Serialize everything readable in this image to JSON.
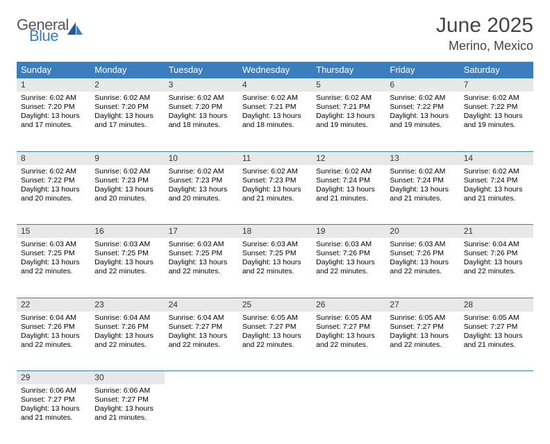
{
  "logo": {
    "general": "General",
    "blue": "Blue"
  },
  "title": "June 2025",
  "location": "Merino, Mexico",
  "colors": {
    "header_bg": "#3a7ebf",
    "daynum_bg": "#e8e8e8",
    "border": "#3a7ebf"
  },
  "weekdays": [
    "Sunday",
    "Monday",
    "Tuesday",
    "Wednesday",
    "Thursday",
    "Friday",
    "Saturday"
  ],
  "weeks": [
    [
      {
        "n": "1",
        "sr": "6:02 AM",
        "ss": "7:20 PM",
        "dl": "13 hours and 17 minutes."
      },
      {
        "n": "2",
        "sr": "6:02 AM",
        "ss": "7:20 PM",
        "dl": "13 hours and 17 minutes."
      },
      {
        "n": "3",
        "sr": "6:02 AM",
        "ss": "7:20 PM",
        "dl": "13 hours and 18 minutes."
      },
      {
        "n": "4",
        "sr": "6:02 AM",
        "ss": "7:21 PM",
        "dl": "13 hours and 18 minutes."
      },
      {
        "n": "5",
        "sr": "6:02 AM",
        "ss": "7:21 PM",
        "dl": "13 hours and 19 minutes."
      },
      {
        "n": "6",
        "sr": "6:02 AM",
        "ss": "7:22 PM",
        "dl": "13 hours and 19 minutes."
      },
      {
        "n": "7",
        "sr": "6:02 AM",
        "ss": "7:22 PM",
        "dl": "13 hours and 19 minutes."
      }
    ],
    [
      {
        "n": "8",
        "sr": "6:02 AM",
        "ss": "7:22 PM",
        "dl": "13 hours and 20 minutes."
      },
      {
        "n": "9",
        "sr": "6:02 AM",
        "ss": "7:23 PM",
        "dl": "13 hours and 20 minutes."
      },
      {
        "n": "10",
        "sr": "6:02 AM",
        "ss": "7:23 PM",
        "dl": "13 hours and 20 minutes."
      },
      {
        "n": "11",
        "sr": "6:02 AM",
        "ss": "7:23 PM",
        "dl": "13 hours and 21 minutes."
      },
      {
        "n": "12",
        "sr": "6:02 AM",
        "ss": "7:24 PM",
        "dl": "13 hours and 21 minutes."
      },
      {
        "n": "13",
        "sr": "6:02 AM",
        "ss": "7:24 PM",
        "dl": "13 hours and 21 minutes."
      },
      {
        "n": "14",
        "sr": "6:02 AM",
        "ss": "7:24 PM",
        "dl": "13 hours and 21 minutes."
      }
    ],
    [
      {
        "n": "15",
        "sr": "6:03 AM",
        "ss": "7:25 PM",
        "dl": "13 hours and 22 minutes."
      },
      {
        "n": "16",
        "sr": "6:03 AM",
        "ss": "7:25 PM",
        "dl": "13 hours and 22 minutes."
      },
      {
        "n": "17",
        "sr": "6:03 AM",
        "ss": "7:25 PM",
        "dl": "13 hours and 22 minutes."
      },
      {
        "n": "18",
        "sr": "6:03 AM",
        "ss": "7:25 PM",
        "dl": "13 hours and 22 minutes."
      },
      {
        "n": "19",
        "sr": "6:03 AM",
        "ss": "7:26 PM",
        "dl": "13 hours and 22 minutes."
      },
      {
        "n": "20",
        "sr": "6:03 AM",
        "ss": "7:26 PM",
        "dl": "13 hours and 22 minutes."
      },
      {
        "n": "21",
        "sr": "6:04 AM",
        "ss": "7:26 PM",
        "dl": "13 hours and 22 minutes."
      }
    ],
    [
      {
        "n": "22",
        "sr": "6:04 AM",
        "ss": "7:26 PM",
        "dl": "13 hours and 22 minutes."
      },
      {
        "n": "23",
        "sr": "6:04 AM",
        "ss": "7:26 PM",
        "dl": "13 hours and 22 minutes."
      },
      {
        "n": "24",
        "sr": "6:04 AM",
        "ss": "7:27 PM",
        "dl": "13 hours and 22 minutes."
      },
      {
        "n": "25",
        "sr": "6:05 AM",
        "ss": "7:27 PM",
        "dl": "13 hours and 22 minutes."
      },
      {
        "n": "26",
        "sr": "6:05 AM",
        "ss": "7:27 PM",
        "dl": "13 hours and 22 minutes."
      },
      {
        "n": "27",
        "sr": "6:05 AM",
        "ss": "7:27 PM",
        "dl": "13 hours and 22 minutes."
      },
      {
        "n": "28",
        "sr": "6:05 AM",
        "ss": "7:27 PM",
        "dl": "13 hours and 21 minutes."
      }
    ],
    [
      {
        "n": "29",
        "sr": "6:06 AM",
        "ss": "7:27 PM",
        "dl": "13 hours and 21 minutes."
      },
      {
        "n": "30",
        "sr": "6:06 AM",
        "ss": "7:27 PM",
        "dl": "13 hours and 21 minutes."
      },
      null,
      null,
      null,
      null,
      null
    ]
  ],
  "labels": {
    "sunrise": "Sunrise:",
    "sunset": "Sunset:",
    "daylight": "Daylight:"
  }
}
